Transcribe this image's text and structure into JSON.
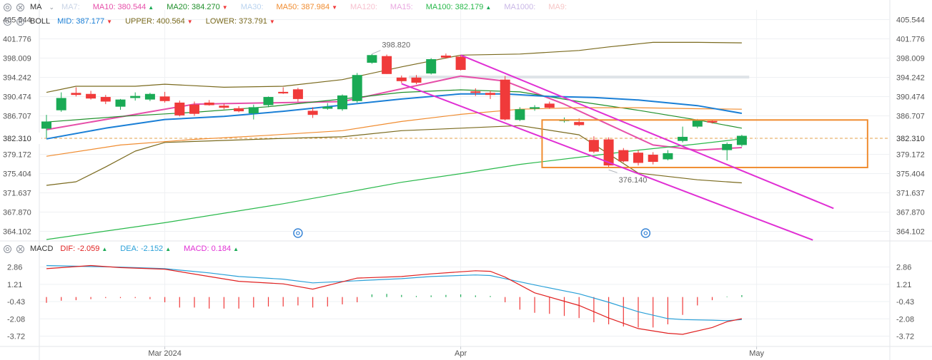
{
  "colors": {
    "up": "#1aaa55",
    "down": "#f03a3a",
    "grid": "#eef0f3",
    "axis_text": "#555555",
    "current_price": "#e3a04b",
    "channel": "#e02fd4",
    "box": "#f08c30"
  },
  "legends": {
    "ma": {
      "name": "MA",
      "items": [
        {
          "label": "MA7:",
          "value": "",
          "color": "#c9d4e6",
          "arrow": ""
        },
        {
          "label": "MA10:",
          "value": "380.544",
          "color": "#e64fa9",
          "arrow": "▲"
        },
        {
          "label": "MA20:",
          "value": "384.270",
          "color": "#1f8f2a",
          "arrow": "▼"
        },
        {
          "label": "MA30:",
          "value": "",
          "color": "#b9d3ef",
          "arrow": ""
        },
        {
          "label": "MA50:",
          "value": "387.984",
          "color": "#f08c30",
          "arrow": "▼"
        },
        {
          "label": "MA120:",
          "value": "",
          "color": "#f7c1cf",
          "arrow": ""
        },
        {
          "label": "MA15:",
          "value": "",
          "color": "#e9a8e0",
          "arrow": ""
        },
        {
          "label": "MA100:",
          "value": "382.179",
          "color": "#28b84a",
          "arrow": "▲"
        },
        {
          "label": "MA1000:",
          "value": "",
          "color": "#c9b7e6",
          "arrow": ""
        },
        {
          "label": "MA9:",
          "value": "",
          "color": "#f6c6c6",
          "arrow": ""
        }
      ]
    },
    "boll": {
      "name": "BOLL",
      "items": [
        {
          "label": "MID:",
          "value": "387.177",
          "color": "#1a7fd6",
          "arrow": "▼"
        },
        {
          "label": "UPPER:",
          "value": "400.564",
          "color": "#7a6a1e",
          "arrow": "▼"
        },
        {
          "label": "LOWER:",
          "value": "373.791",
          "color": "#7a6a1e",
          "arrow": "▼"
        }
      ]
    },
    "macd": {
      "name": "MACD",
      "items": [
        {
          "label": "DIF:",
          "value": "-2.059",
          "color": "#e02020",
          "arrow": "▲"
        },
        {
          "label": "DEA:",
          "value": "-2.152",
          "color": "#2aa0d8",
          "arrow": "▲"
        },
        {
          "label": "MACD:",
          "value": "0.184",
          "color": "#e02fd4",
          "arrow": "▲"
        }
      ]
    }
  },
  "chart_data": [
    {
      "type": "candlestick",
      "price_ticks": [
        "405.544",
        "401.776",
        "398.009",
        "394.242",
        "390.474",
        "386.707",
        "382.310",
        "379.172",
        "375.404",
        "371.637",
        "367.870",
        "364.102"
      ],
      "ylim": [
        362.222,
        407.428
      ],
      "current_price": 382.31,
      "x_labels": [
        {
          "text": "Mar 2024",
          "index": 8
        },
        {
          "text": "Apr",
          "index": 28
        },
        {
          "text": "May",
          "index": 48
        }
      ],
      "annotations": [
        {
          "text": "398.820",
          "index": 22,
          "price": 398.82
        },
        {
          "text": "376.140",
          "index": 38,
          "price": 376.14
        }
      ],
      "candles": [
        {
          "o": 384.2,
          "h": 386.9,
          "l": 382.4,
          "c": 385.6
        },
        {
          "o": 387.8,
          "h": 391.3,
          "l": 387.5,
          "c": 390.2
        },
        {
          "o": 391.2,
          "h": 392.3,
          "l": 390.5,
          "c": 390.8
        },
        {
          "o": 391.0,
          "h": 391.6,
          "l": 389.9,
          "c": 390.1
        },
        {
          "o": 390.4,
          "h": 390.8,
          "l": 389.0,
          "c": 389.5
        },
        {
          "o": 388.5,
          "h": 390.0,
          "l": 387.9,
          "c": 389.9
        },
        {
          "o": 390.2,
          "h": 391.3,
          "l": 389.7,
          "c": 390.6
        },
        {
          "o": 389.9,
          "h": 391.2,
          "l": 389.6,
          "c": 391.0
        },
        {
          "o": 390.5,
          "h": 391.4,
          "l": 389.3,
          "c": 389.6
        },
        {
          "o": 389.3,
          "h": 389.7,
          "l": 386.6,
          "c": 386.8
        },
        {
          "o": 388.9,
          "h": 389.5,
          "l": 386.7,
          "c": 387.1
        },
        {
          "o": 389.3,
          "h": 389.8,
          "l": 388.7,
          "c": 388.8
        },
        {
          "o": 388.7,
          "h": 389.1,
          "l": 388.0,
          "c": 388.3
        },
        {
          "o": 388.2,
          "h": 388.6,
          "l": 387.4,
          "c": 387.6
        },
        {
          "o": 387.2,
          "h": 388.9,
          "l": 386.0,
          "c": 388.4
        },
        {
          "o": 388.8,
          "h": 390.5,
          "l": 388.4,
          "c": 390.4
        },
        {
          "o": 391.4,
          "h": 392.3,
          "l": 391.0,
          "c": 391.1
        },
        {
          "o": 391.9,
          "h": 392.2,
          "l": 389.5,
          "c": 390.0
        },
        {
          "o": 387.7,
          "h": 388.4,
          "l": 386.3,
          "c": 386.9
        },
        {
          "o": 388.1,
          "h": 389.2,
          "l": 387.9,
          "c": 388.5
        },
        {
          "o": 388.0,
          "h": 390.9,
          "l": 387.7,
          "c": 390.7
        },
        {
          "o": 389.6,
          "h": 395.1,
          "l": 389.3,
          "c": 394.7
        },
        {
          "o": 397.1,
          "h": 398.8,
          "l": 396.9,
          "c": 398.6
        },
        {
          "o": 398.4,
          "h": 398.7,
          "l": 394.9,
          "c": 394.9
        },
        {
          "o": 394.2,
          "h": 394.6,
          "l": 393.1,
          "c": 393.5
        },
        {
          "o": 394.2,
          "h": 394.7,
          "l": 392.9,
          "c": 393.2
        },
        {
          "o": 395.0,
          "h": 398.0,
          "l": 394.8,
          "c": 397.8
        },
        {
          "o": 398.5,
          "h": 398.9,
          "l": 397.9,
          "c": 398.1
        },
        {
          "o": 398.3,
          "h": 398.6,
          "l": 395.6,
          "c": 395.7
        },
        {
          "o": 391.5,
          "h": 392.1,
          "l": 390.6,
          "c": 391.2
        },
        {
          "o": 391.2,
          "h": 391.6,
          "l": 390.0,
          "c": 390.8
        },
        {
          "o": 393.8,
          "h": 394.5,
          "l": 385.8,
          "c": 386.0
        },
        {
          "o": 385.9,
          "h": 388.4,
          "l": 385.7,
          "c": 388.0
        },
        {
          "o": 388.1,
          "h": 388.8,
          "l": 387.7,
          "c": 388.4
        },
        {
          "o": 389.1,
          "h": 389.5,
          "l": 388.1,
          "c": 388.3
        },
        {
          "o": 385.8,
          "h": 386.4,
          "l": 385.4,
          "c": 385.9
        },
        {
          "o": 385.5,
          "h": 386.2,
          "l": 384.7,
          "c": 384.9
        },
        {
          "o": 382.0,
          "h": 382.7,
          "l": 379.4,
          "c": 379.7
        },
        {
          "o": 382.1,
          "h": 382.5,
          "l": 376.7,
          "c": 377.0
        },
        {
          "o": 380.0,
          "h": 380.4,
          "l": 377.6,
          "c": 377.8
        },
        {
          "o": 379.5,
          "h": 380.0,
          "l": 377.0,
          "c": 377.5
        },
        {
          "o": 379.1,
          "h": 379.6,
          "l": 377.2,
          "c": 377.7
        },
        {
          "o": 378.2,
          "h": 380.0,
          "l": 378.0,
          "c": 379.4
        },
        {
          "o": 381.8,
          "h": 384.6,
          "l": 381.5,
          "c": 382.6
        },
        {
          "o": 384.6,
          "h": 386.1,
          "l": 384.3,
          "c": 385.9
        },
        {
          "o": 385.7,
          "h": 386.0,
          "l": 385.2,
          "c": 385.4
        },
        {
          "o": 380.0,
          "h": 381.5,
          "l": 378.0,
          "c": 381.2
        },
        {
          "o": 381.0,
          "h": 383.0,
          "l": 380.7,
          "c": 382.8
        }
      ],
      "lines": [
        {
          "name": "MA10",
          "color": "#e64fa9",
          "points": [
            [
              0,
              384.0
            ],
            [
              10,
              389.0
            ],
            [
              20,
              389.5
            ],
            [
              24,
              392.0
            ],
            [
              28,
              394.5
            ],
            [
              31,
              393.5
            ],
            [
              35,
              389.0
            ],
            [
              38,
              385.0
            ],
            [
              41,
              381.0
            ],
            [
              44,
              380.0
            ],
            [
              47,
              380.5
            ]
          ]
        },
        {
          "name": "MA20",
          "color": "#1f8f2a",
          "points": [
            [
              0,
              385.5
            ],
            [
              5,
              386.6
            ],
            [
              10,
              387.4
            ],
            [
              15,
              388.5
            ],
            [
              20,
              390.0
            ],
            [
              24,
              391.3
            ],
            [
              28,
              391.8
            ],
            [
              32,
              391.4
            ],
            [
              36,
              389.5
            ],
            [
              40,
              387.8
            ],
            [
              44,
              385.9
            ],
            [
              47,
              384.3
            ]
          ]
        },
        {
          "name": "MA50",
          "color": "#f08c30",
          "points": [
            [
              0,
              378.8
            ],
            [
              5,
              381.0
            ],
            [
              10,
              382.1
            ],
            [
              15,
              382.9
            ],
            [
              20,
              383.8
            ],
            [
              24,
              385.6
            ],
            [
              28,
              387.0
            ],
            [
              32,
              388.0
            ],
            [
              36,
              388.3
            ],
            [
              40,
              388.3
            ],
            [
              44,
              388.1
            ],
            [
              47,
              388.0
            ]
          ]
        },
        {
          "name": "MA100",
          "color": "#28b84a",
          "points": [
            [
              0,
              362.5
            ],
            [
              8,
              365.8
            ],
            [
              16,
              369.5
            ],
            [
              20,
              371.6
            ],
            [
              24,
              373.7
            ],
            [
              28,
              375.4
            ],
            [
              32,
              377.2
            ],
            [
              36,
              378.6
            ],
            [
              40,
              380.0
            ],
            [
              44,
              381.2
            ],
            [
              47,
              382.2
            ]
          ]
        },
        {
          "name": "BOLL MID",
          "color": "#1a7fd6",
          "points": [
            [
              0,
              382.2
            ],
            [
              4,
              384.3
            ],
            [
              8,
              386.0
            ],
            [
              12,
              386.6
            ],
            [
              16,
              387.6
            ],
            [
              20,
              388.8
            ],
            [
              24,
              390.0
            ],
            [
              28,
              391.0
            ],
            [
              31,
              391.0
            ],
            [
              34,
              390.5
            ],
            [
              37,
              390.3
            ],
            [
              40,
              389.8
            ],
            [
              44,
              388.7
            ],
            [
              47,
              387.2
            ]
          ]
        },
        {
          "name": "BOLL UPPER",
          "color": "#7a6a1e",
          "points": [
            [
              0,
              391.3
            ],
            [
              2,
              392.5
            ],
            [
              6,
              392.5
            ],
            [
              8,
              392.9
            ],
            [
              12,
              392.3
            ],
            [
              16,
              392.5
            ],
            [
              20,
              393.8
            ],
            [
              24,
              396.3
            ],
            [
              28,
              398.6
            ],
            [
              32,
              398.8
            ],
            [
              36,
              399.5
            ],
            [
              38,
              400.2
            ],
            [
              41,
              401.1
            ],
            [
              44,
              401.1
            ],
            [
              47,
              401.0
            ]
          ]
        },
        {
          "name": "BOLL LOWER",
          "color": "#7a6a1e",
          "points": [
            [
              0,
              373.1
            ],
            [
              2,
              373.8
            ],
            [
              4,
              376.7
            ],
            [
              6,
              379.8
            ],
            [
              8,
              381.5
            ],
            [
              12,
              381.9
            ],
            [
              16,
              382.3
            ],
            [
              20,
              382.6
            ],
            [
              24,
              383.8
            ],
            [
              28,
              384.3
            ],
            [
              32,
              384.8
            ],
            [
              36,
              383.0
            ],
            [
              40,
              375.5
            ],
            [
              44,
              374.2
            ],
            [
              47,
              373.6
            ]
          ]
        }
      ],
      "shapes": {
        "channel_upper": [
          [
            28,
            398.6
          ],
          [
            53.2,
            368.6
          ]
        ],
        "channel_lower": [
          [
            24,
            393.0
          ],
          [
            51.8,
            362.4
          ]
        ],
        "range_box": {
          "i0": 33.5,
          "i1": 55.5,
          "p0": 376.6,
          "p1": 385.9
        },
        "level_band": 394.3
      }
    },
    {
      "type": "macd",
      "ticks": [
        "2.86",
        "1.21",
        "-0.43",
        "-2.08",
        "-3.72"
      ],
      "ylim": [
        -4.57,
        3.71
      ],
      "dif": [
        [
          0,
          2.7
        ],
        [
          3,
          3.0
        ],
        [
          5,
          2.8
        ],
        [
          8,
          2.65
        ],
        [
          11,
          1.95
        ],
        [
          13,
          1.5
        ],
        [
          16,
          1.25
        ],
        [
          18,
          0.75
        ],
        [
          21,
          1.8
        ],
        [
          24,
          1.95
        ],
        [
          26,
          2.2
        ],
        [
          29,
          2.5
        ],
        [
          30,
          2.45
        ],
        [
          31,
          1.9
        ],
        [
          33,
          0.4
        ],
        [
          36,
          -0.8
        ],
        [
          38,
          -2.0
        ],
        [
          40,
          -3.0
        ],
        [
          42,
          -3.45
        ],
        [
          43,
          -3.55
        ],
        [
          45,
          -2.9
        ],
        [
          46,
          -2.35
        ],
        [
          47,
          -2.06
        ]
      ],
      "dea": [
        [
          0,
          3.0
        ],
        [
          3,
          2.9
        ],
        [
          5,
          2.85
        ],
        [
          8,
          2.7
        ],
        [
          11,
          2.3
        ],
        [
          13,
          1.95
        ],
        [
          16,
          1.7
        ],
        [
          18,
          1.35
        ],
        [
          21,
          1.55
        ],
        [
          24,
          1.75
        ],
        [
          26,
          1.95
        ],
        [
          29,
          2.1
        ],
        [
          30,
          2.05
        ],
        [
          31,
          1.75
        ],
        [
          33,
          1.15
        ],
        [
          36,
          0.3
        ],
        [
          38,
          -0.5
        ],
        [
          40,
          -1.4
        ],
        [
          42,
          -2.05
        ],
        [
          43,
          -2.15
        ],
        [
          45,
          -2.2
        ],
        [
          46,
          -2.25
        ],
        [
          47,
          -2.15
        ]
      ],
      "hist": [
        -0.55,
        -0.35,
        -0.3,
        -0.2,
        -0.1,
        -0.1,
        -0.1,
        -0.2,
        -0.5,
        -1.0,
        -1.0,
        -1.1,
        -1.1,
        -1.1,
        -1.0,
        -0.9,
        -0.9,
        -0.8,
        -1.0,
        -0.9,
        -0.7,
        -0.5,
        0.25,
        0.3,
        0.2,
        0.1,
        0.15,
        0.2,
        0.25,
        0.15,
        0.1,
        -0.5,
        -1.2,
        -1.5,
        -1.6,
        -1.8,
        -2.0,
        -2.4,
        -2.6,
        -2.8,
        -2.9,
        -2.9,
        -2.6,
        -1.7,
        -0.8,
        -0.3,
        0.05,
        0.18
      ]
    }
  ]
}
